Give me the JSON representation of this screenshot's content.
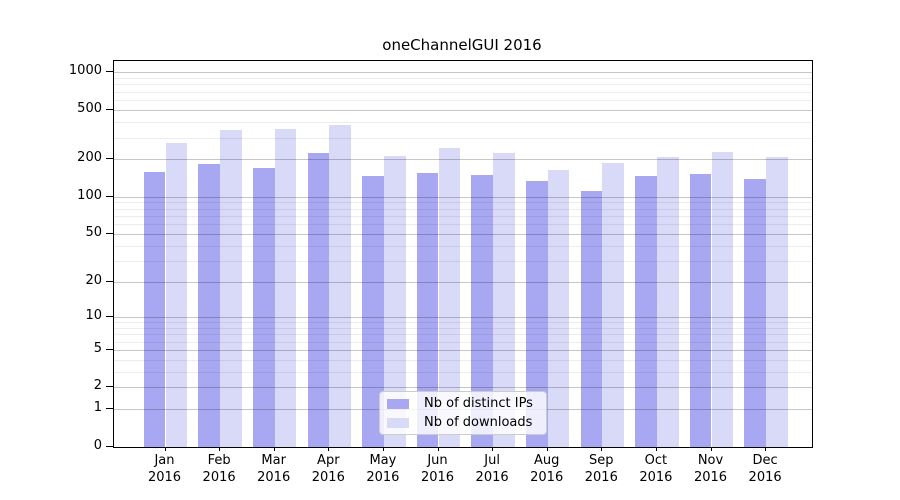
{
  "title": "oneChannelGUI 2016",
  "chart_data": {
    "type": "bar",
    "title": "oneChannelGUI 2016",
    "xlabel": "",
    "ylabel": "",
    "x_categories": [
      "Jan",
      "Feb",
      "Mar",
      "Apr",
      "May",
      "Jun",
      "Jul",
      "Aug",
      "Sep",
      "Oct",
      "Nov",
      "Dec"
    ],
    "x_year": "2016",
    "series": [
      {
        "name": "Nb of distinct IPs",
        "color": "#a8a8f2",
        "values": [
          158,
          184,
          170,
          224,
          146,
          156,
          151,
          133,
          111,
          146,
          153,
          139
        ]
      },
      {
        "name": "Nb of downloads",
        "color": "#d9d9f8",
        "values": [
          269,
          342,
          352,
          379,
          215,
          249,
          225,
          165,
          186,
          208,
          228,
          208
        ]
      }
    ],
    "y_scale": "log1p",
    "y_ticks": [
      0,
      1,
      2,
      5,
      10,
      20,
      50,
      100,
      200,
      500,
      1000
    ],
    "y_minor_ticks": [
      3,
      4,
      6,
      7,
      8,
      9,
      30,
      40,
      60,
      70,
      80,
      90,
      300,
      400,
      600,
      700,
      800,
      900
    ],
    "ylim": [
      0,
      1233
    ],
    "grid": "on",
    "legend_position": "lower center"
  }
}
